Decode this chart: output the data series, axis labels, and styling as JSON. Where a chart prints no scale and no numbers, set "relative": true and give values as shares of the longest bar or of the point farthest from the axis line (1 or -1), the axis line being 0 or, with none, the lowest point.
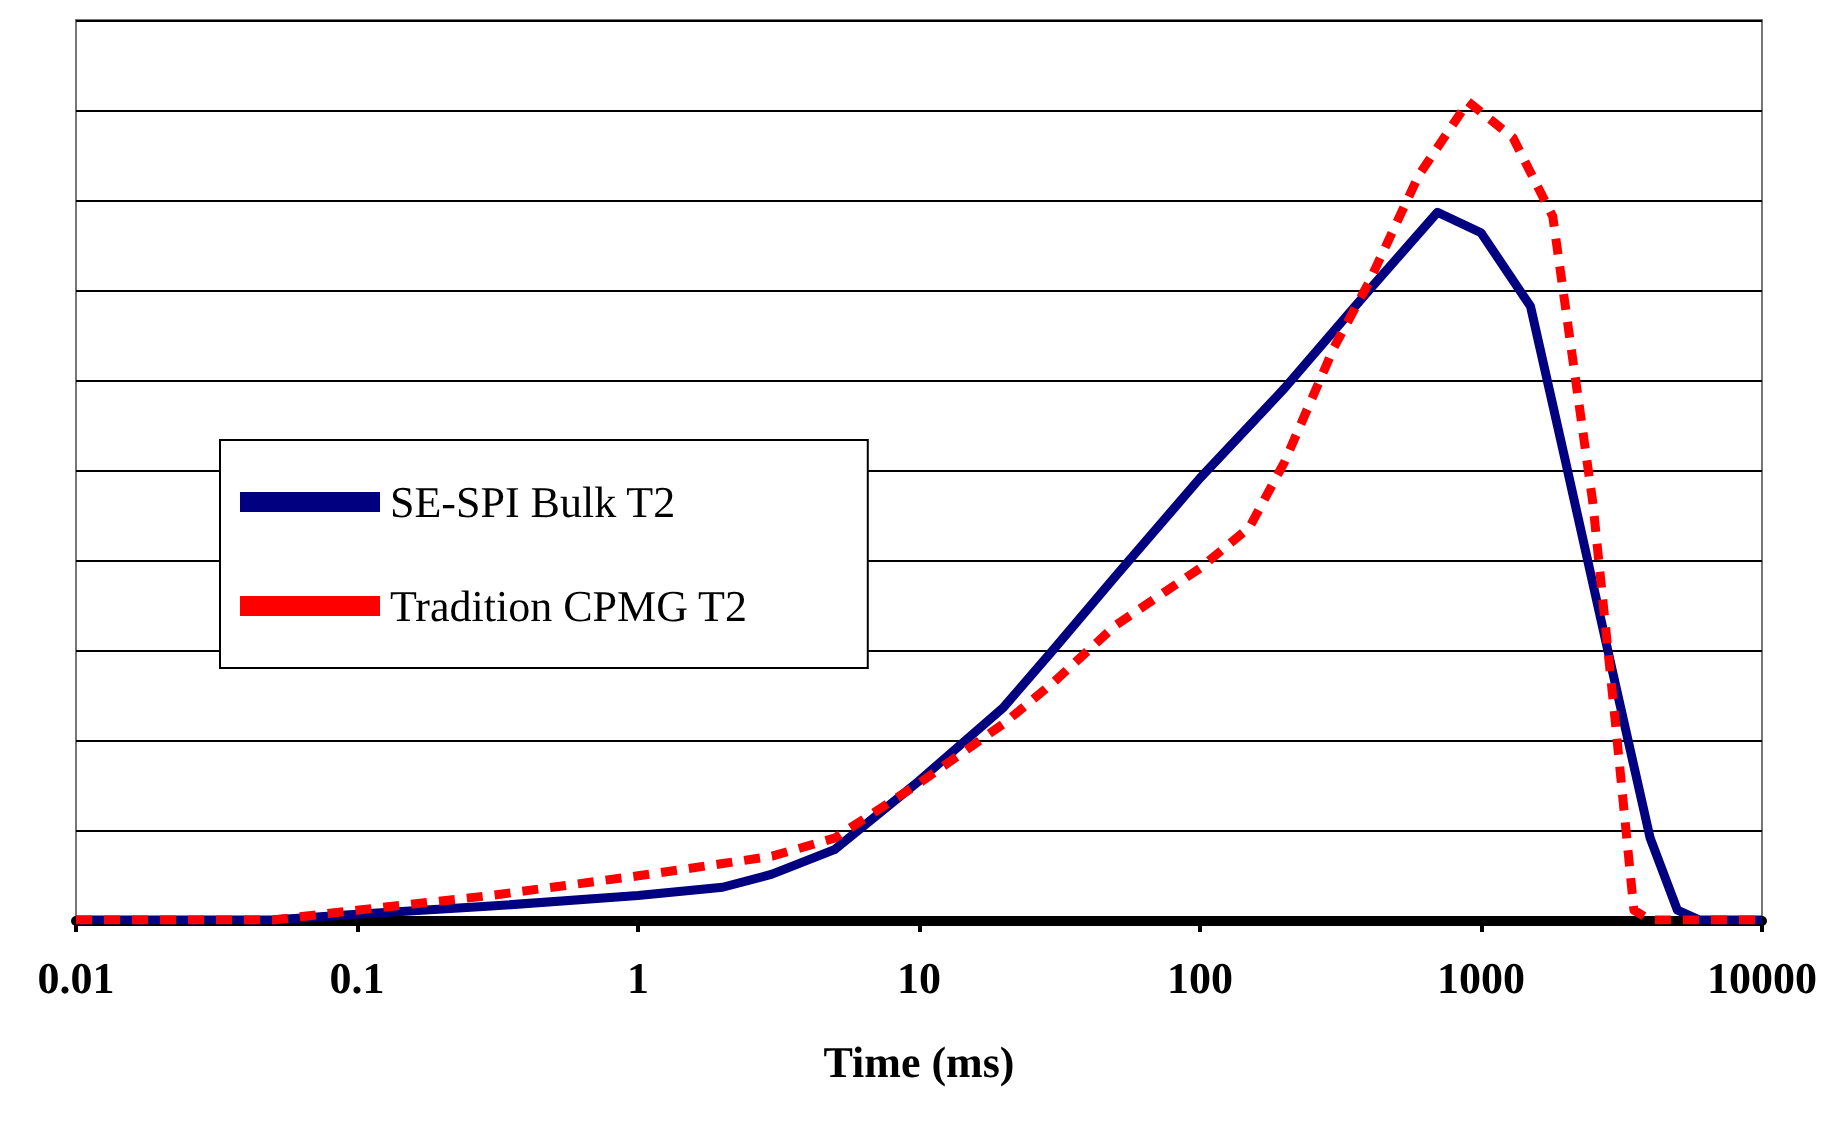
{
  "chart_data": {
    "type": "line",
    "xlabel": "Time (ms)",
    "relative": true,
    "log": "x",
    "grid": "y",
    "legend": "left",
    "marker": "none",
    "xlim": [
      0.01,
      10000
    ],
    "xticks": [
      0.01,
      0.1,
      1,
      10,
      100,
      1000,
      10000
    ],
    "series": [
      {
        "name": "SE-SPI Bulk T2",
        "color": "#000080",
        "line_style": "solid",
        "x": [
          0.01,
          0.05,
          0.1,
          0.3,
          1,
          2,
          3,
          5,
          10,
          20,
          30,
          50,
          100,
          200,
          400,
          700,
          1000,
          1500,
          2000,
          3000,
          4000,
          5000,
          6000,
          10000
        ],
        "values": [
          0,
          0,
          0.007,
          0.017,
          0.03,
          0.04,
          0.056,
          0.086,
          0.17,
          0.26,
          0.33,
          0.42,
          0.54,
          0.65,
          0.77,
          0.865,
          0.84,
          0.75,
          0.56,
          0.29,
          0.1,
          0.012,
          0,
          0
        ]
      },
      {
        "name": "Tradition CPMG T2",
        "color": "#ff0000",
        "line_style": "dashed",
        "x": [
          0.01,
          0.05,
          0.1,
          0.3,
          1,
          2,
          3,
          5,
          10,
          20,
          30,
          50,
          100,
          150,
          200,
          300,
          400,
          600,
          900,
          1300,
          1800,
          2500,
          3000,
          3500,
          4000,
          10000
        ],
        "values": [
          0,
          0,
          0.012,
          0.03,
          0.054,
          0.069,
          0.078,
          0.1,
          0.167,
          0.24,
          0.29,
          0.36,
          0.43,
          0.48,
          0.56,
          0.7,
          0.78,
          0.91,
          1,
          0.956,
          0.86,
          0.51,
          0.245,
          0.012,
          0,
          0
        ]
      }
    ]
  }
}
